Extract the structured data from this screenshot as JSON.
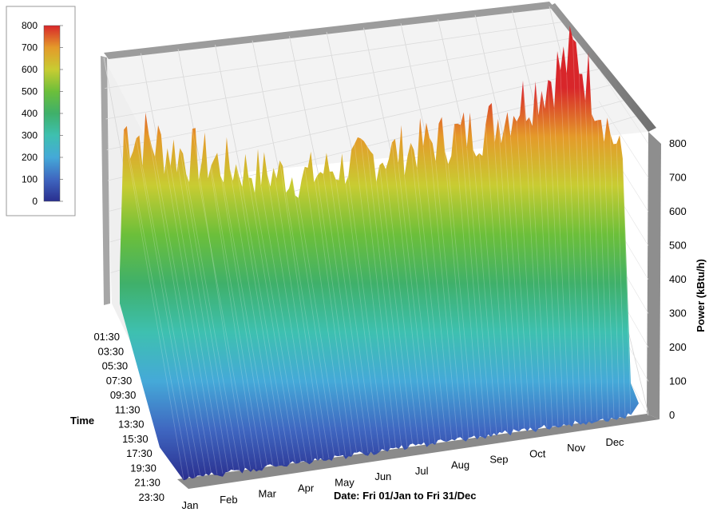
{
  "chart_data": {
    "type": "surface3d",
    "title": "",
    "xlabel": "Date: Fri 01/Jan to Fri 31/Dec",
    "ylabel": "Time",
    "zlabel": "Power (kBtu/h)",
    "x_ticks": [
      "Jan",
      "Feb",
      "Mar",
      "Apr",
      "May",
      "Jun",
      "Jul",
      "Aug",
      "Sep",
      "Oct",
      "Nov",
      "Dec"
    ],
    "y_ticks": [
      "01:30",
      "03:30",
      "05:30",
      "07:30",
      "09:30",
      "11:30",
      "13:30",
      "15:30",
      "17:30",
      "19:30",
      "21:30",
      "23:30"
    ],
    "z_ticks": [
      0,
      100,
      200,
      300,
      400,
      500,
      600,
      700,
      800
    ],
    "zlim": [
      0,
      800
    ],
    "grid": true,
    "colorscale": {
      "min": 0,
      "max": 800,
      "ticks": [
        0,
        100,
        200,
        300,
        400,
        500,
        600,
        700,
        800
      ],
      "colors": [
        "#2a2f8f",
        "#3f66c0",
        "#45a9d8",
        "#3ec0b0",
        "#3fb06a",
        "#6cbf3a",
        "#c8cc32",
        "#e49a2a",
        "#d8262a"
      ],
      "legend_position": "top-left"
    },
    "series": [
      {
        "months": [
          "Jan",
          "Feb",
          "Mar",
          "Apr",
          "May",
          "Jun",
          "Jul",
          "Aug",
          "Sep",
          "Oct",
          "Nov",
          "Dec"
        ],
        "daily_peak_kbtu_h": [
          700,
          620,
          560,
          510,
          480,
          500,
          520,
          540,
          560,
          650,
          760,
          400
        ],
        "night_base_kbtu_h": [
          60,
          55,
          45,
          35,
          30,
          30,
          30,
          30,
          35,
          45,
          60,
          70
        ]
      }
    ]
  }
}
